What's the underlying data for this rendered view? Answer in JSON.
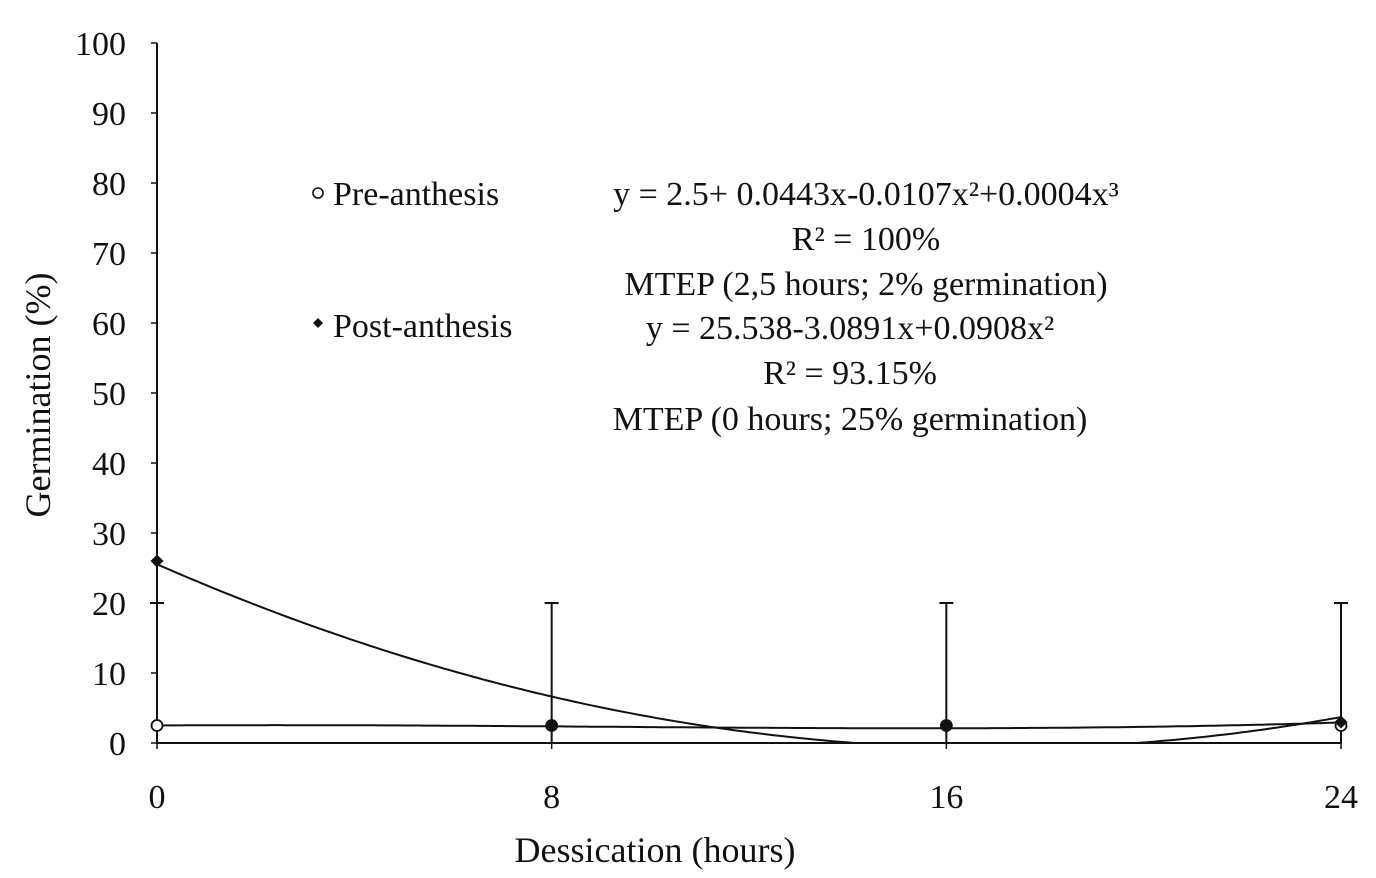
{
  "chart_data": {
    "type": "scatter",
    "title": "",
    "xlabel": "Dessication (hours)",
    "ylabel": "Germination (%)",
    "xlim": [
      0,
      24
    ],
    "ylim": [
      0,
      100
    ],
    "x_ticks": [
      0,
      8,
      16,
      24
    ],
    "y_ticks": [
      0,
      10,
      20,
      30,
      40,
      50,
      60,
      70,
      80,
      90,
      100
    ],
    "grid": false,
    "legend_position": "upper-left",
    "series": [
      {
        "name": "Pre-anthesis",
        "marker": "open-circle",
        "x": [
          0,
          8,
          16,
          24
        ],
        "y": [
          2.5,
          2.5,
          2.5,
          2.5
        ],
        "fit_coefficients": [
          2.5,
          0.0443,
          -0.0107,
          0.0004
        ],
        "equation": "y = 2.5+ 0.0443x-0.0107x²+0.0004x³",
        "r2": "R² = 100%",
        "mtep": "MTEP (2,5 hours; 2% germination)"
      },
      {
        "name": "Post-anthesis",
        "marker": "filled-diamond",
        "x": [
          0,
          8,
          16,
          24
        ],
        "y": [
          26,
          2.5,
          2.5,
          3
        ],
        "fit_coefficients": [
          25.538,
          -3.0891,
          0.0908
        ],
        "equation": "y = 25.538-3.0891x+0.0908x²",
        "r2": "R² = 93.15%",
        "mtep": "MTEP (0 hours; 25% germination)"
      }
    ],
    "error_bars": {
      "x": [
        0,
        8,
        16,
        24
      ],
      "upper": [
        20,
        20,
        20,
        20
      ]
    },
    "colors": {
      "ink": "#111111",
      "background": "#ffffff"
    }
  }
}
